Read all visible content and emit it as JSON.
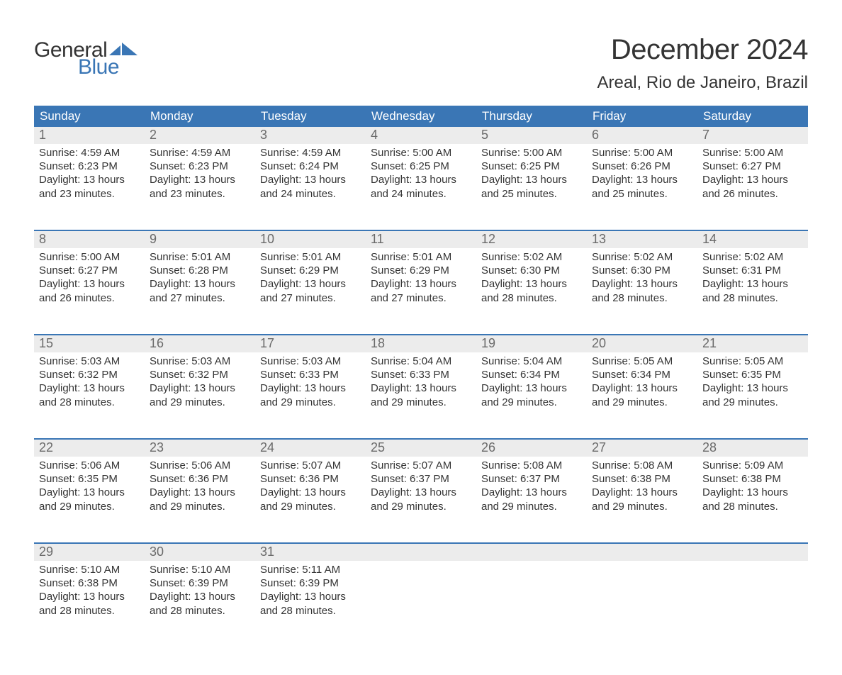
{
  "logo": {
    "word1": "General",
    "word2": "Blue"
  },
  "title": "December 2024",
  "location": "Areal, Rio de Janeiro, Brazil",
  "colors": {
    "header_bg": "#3a76b5",
    "header_text": "#ffffff",
    "daynum_bg": "#ececec",
    "daynum_text": "#6a6a6a",
    "body_text": "#343434",
    "logo_blue": "#3a76b5",
    "page_bg": "#ffffff"
  },
  "day_names": [
    "Sunday",
    "Monday",
    "Tuesday",
    "Wednesday",
    "Thursday",
    "Friday",
    "Saturday"
  ],
  "weeks": [
    [
      {
        "n": "1",
        "sr": "Sunrise: 4:59 AM",
        "ss": "Sunset: 6:23 PM",
        "d1": "Daylight: 13 hours",
        "d2": "and 23 minutes."
      },
      {
        "n": "2",
        "sr": "Sunrise: 4:59 AM",
        "ss": "Sunset: 6:23 PM",
        "d1": "Daylight: 13 hours",
        "d2": "and 23 minutes."
      },
      {
        "n": "3",
        "sr": "Sunrise: 4:59 AM",
        "ss": "Sunset: 6:24 PM",
        "d1": "Daylight: 13 hours",
        "d2": "and 24 minutes."
      },
      {
        "n": "4",
        "sr": "Sunrise: 5:00 AM",
        "ss": "Sunset: 6:25 PM",
        "d1": "Daylight: 13 hours",
        "d2": "and 24 minutes."
      },
      {
        "n": "5",
        "sr": "Sunrise: 5:00 AM",
        "ss": "Sunset: 6:25 PM",
        "d1": "Daylight: 13 hours",
        "d2": "and 25 minutes."
      },
      {
        "n": "6",
        "sr": "Sunrise: 5:00 AM",
        "ss": "Sunset: 6:26 PM",
        "d1": "Daylight: 13 hours",
        "d2": "and 25 minutes."
      },
      {
        "n": "7",
        "sr": "Sunrise: 5:00 AM",
        "ss": "Sunset: 6:27 PM",
        "d1": "Daylight: 13 hours",
        "d2": "and 26 minutes."
      }
    ],
    [
      {
        "n": "8",
        "sr": "Sunrise: 5:00 AM",
        "ss": "Sunset: 6:27 PM",
        "d1": "Daylight: 13 hours",
        "d2": "and 26 minutes."
      },
      {
        "n": "9",
        "sr": "Sunrise: 5:01 AM",
        "ss": "Sunset: 6:28 PM",
        "d1": "Daylight: 13 hours",
        "d2": "and 27 minutes."
      },
      {
        "n": "10",
        "sr": "Sunrise: 5:01 AM",
        "ss": "Sunset: 6:29 PM",
        "d1": "Daylight: 13 hours",
        "d2": "and 27 minutes."
      },
      {
        "n": "11",
        "sr": "Sunrise: 5:01 AM",
        "ss": "Sunset: 6:29 PM",
        "d1": "Daylight: 13 hours",
        "d2": "and 27 minutes."
      },
      {
        "n": "12",
        "sr": "Sunrise: 5:02 AM",
        "ss": "Sunset: 6:30 PM",
        "d1": "Daylight: 13 hours",
        "d2": "and 28 minutes."
      },
      {
        "n": "13",
        "sr": "Sunrise: 5:02 AM",
        "ss": "Sunset: 6:30 PM",
        "d1": "Daylight: 13 hours",
        "d2": "and 28 minutes."
      },
      {
        "n": "14",
        "sr": "Sunrise: 5:02 AM",
        "ss": "Sunset: 6:31 PM",
        "d1": "Daylight: 13 hours",
        "d2": "and 28 minutes."
      }
    ],
    [
      {
        "n": "15",
        "sr": "Sunrise: 5:03 AM",
        "ss": "Sunset: 6:32 PM",
        "d1": "Daylight: 13 hours",
        "d2": "and 28 minutes."
      },
      {
        "n": "16",
        "sr": "Sunrise: 5:03 AM",
        "ss": "Sunset: 6:32 PM",
        "d1": "Daylight: 13 hours",
        "d2": "and 29 minutes."
      },
      {
        "n": "17",
        "sr": "Sunrise: 5:03 AM",
        "ss": "Sunset: 6:33 PM",
        "d1": "Daylight: 13 hours",
        "d2": "and 29 minutes."
      },
      {
        "n": "18",
        "sr": "Sunrise: 5:04 AM",
        "ss": "Sunset: 6:33 PM",
        "d1": "Daylight: 13 hours",
        "d2": "and 29 minutes."
      },
      {
        "n": "19",
        "sr": "Sunrise: 5:04 AM",
        "ss": "Sunset: 6:34 PM",
        "d1": "Daylight: 13 hours",
        "d2": "and 29 minutes."
      },
      {
        "n": "20",
        "sr": "Sunrise: 5:05 AM",
        "ss": "Sunset: 6:34 PM",
        "d1": "Daylight: 13 hours",
        "d2": "and 29 minutes."
      },
      {
        "n": "21",
        "sr": "Sunrise: 5:05 AM",
        "ss": "Sunset: 6:35 PM",
        "d1": "Daylight: 13 hours",
        "d2": "and 29 minutes."
      }
    ],
    [
      {
        "n": "22",
        "sr": "Sunrise: 5:06 AM",
        "ss": "Sunset: 6:35 PM",
        "d1": "Daylight: 13 hours",
        "d2": "and 29 minutes."
      },
      {
        "n": "23",
        "sr": "Sunrise: 5:06 AM",
        "ss": "Sunset: 6:36 PM",
        "d1": "Daylight: 13 hours",
        "d2": "and 29 minutes."
      },
      {
        "n": "24",
        "sr": "Sunrise: 5:07 AM",
        "ss": "Sunset: 6:36 PM",
        "d1": "Daylight: 13 hours",
        "d2": "and 29 minutes."
      },
      {
        "n": "25",
        "sr": "Sunrise: 5:07 AM",
        "ss": "Sunset: 6:37 PM",
        "d1": "Daylight: 13 hours",
        "d2": "and 29 minutes."
      },
      {
        "n": "26",
        "sr": "Sunrise: 5:08 AM",
        "ss": "Sunset: 6:37 PM",
        "d1": "Daylight: 13 hours",
        "d2": "and 29 minutes."
      },
      {
        "n": "27",
        "sr": "Sunrise: 5:08 AM",
        "ss": "Sunset: 6:38 PM",
        "d1": "Daylight: 13 hours",
        "d2": "and 29 minutes."
      },
      {
        "n": "28",
        "sr": "Sunrise: 5:09 AM",
        "ss": "Sunset: 6:38 PM",
        "d1": "Daylight: 13 hours",
        "d2": "and 28 minutes."
      }
    ],
    [
      {
        "n": "29",
        "sr": "Sunrise: 5:10 AM",
        "ss": "Sunset: 6:38 PM",
        "d1": "Daylight: 13 hours",
        "d2": "and 28 minutes."
      },
      {
        "n": "30",
        "sr": "Sunrise: 5:10 AM",
        "ss": "Sunset: 6:39 PM",
        "d1": "Daylight: 13 hours",
        "d2": "and 28 minutes."
      },
      {
        "n": "31",
        "sr": "Sunrise: 5:11 AM",
        "ss": "Sunset: 6:39 PM",
        "d1": "Daylight: 13 hours",
        "d2": "and 28 minutes."
      },
      {
        "n": "",
        "sr": "",
        "ss": "",
        "d1": "",
        "d2": ""
      },
      {
        "n": "",
        "sr": "",
        "ss": "",
        "d1": "",
        "d2": ""
      },
      {
        "n": "",
        "sr": "",
        "ss": "",
        "d1": "",
        "d2": ""
      },
      {
        "n": "",
        "sr": "",
        "ss": "",
        "d1": "",
        "d2": ""
      }
    ]
  ]
}
